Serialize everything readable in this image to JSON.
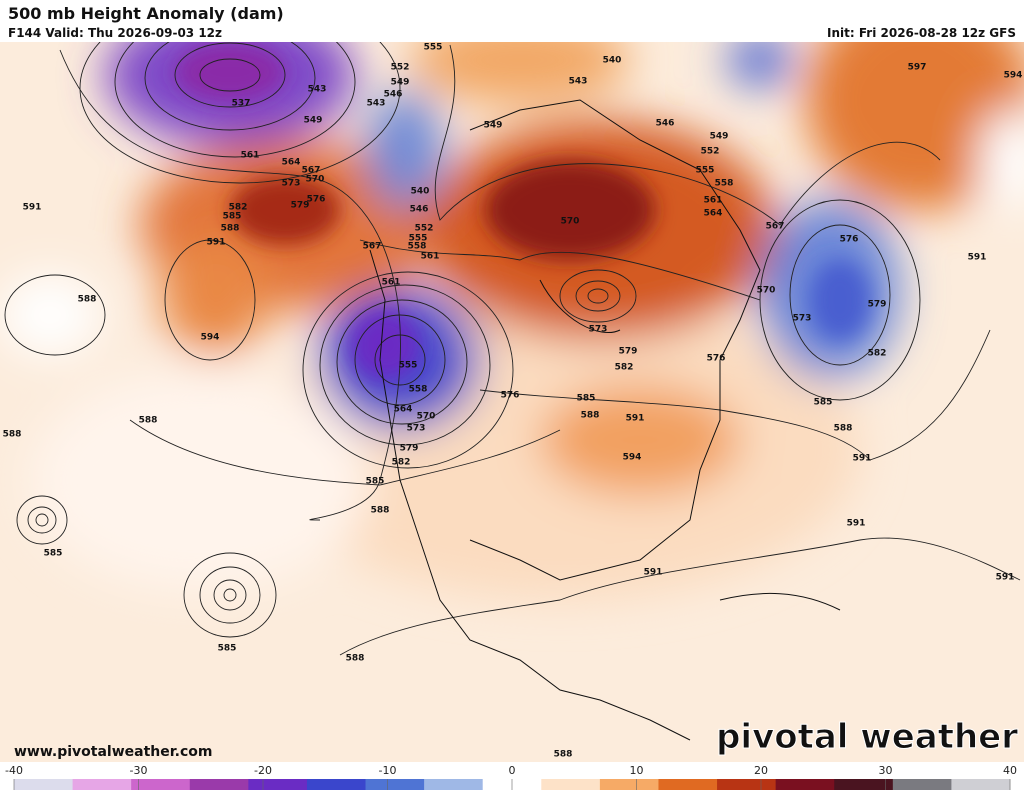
{
  "header": {
    "title": "500 mb Height Anomaly (dam)",
    "valid": "F144 Valid: Thu 2026-09-03 12z",
    "init": "Init: Fri 2026-08-28 12z GFS"
  },
  "footer": {
    "url": "www.pivotalweather.com",
    "logo": "pivotal weather"
  },
  "contour_labels": [
    "555",
    "552",
    "549",
    "546",
    "543",
    "543",
    "540",
    "546",
    "549",
    "552",
    "555",
    "558",
    "561",
    "564",
    "567",
    "570",
    "573",
    "576",
    "579",
    "582",
    "585",
    "588",
    "591",
    "591",
    "597",
    "594",
    "537",
    "543",
    "549",
    "561",
    "564",
    "567",
    "570",
    "573",
    "576",
    "579",
    "582",
    "585",
    "588",
    "591",
    "594",
    "588",
    "591",
    "588",
    "588",
    "585",
    "585",
    "588",
    "588",
    "585",
    "582",
    "579",
    "576",
    "573",
    "570",
    "564",
    "558",
    "555",
    "561",
    "567",
    "561",
    "558",
    "555",
    "552",
    "546",
    "540",
    "549",
    "570",
    "573",
    "579",
    "582",
    "585",
    "588",
    "591",
    "594",
    "576",
    "591",
    "591",
    "591",
    "588"
  ],
  "colorbar": {
    "ticks": [
      -40,
      -30,
      -20,
      -10,
      0,
      10,
      20,
      30,
      40
    ],
    "range": [
      -40,
      40
    ],
    "colors": [
      "#dcdcec",
      "#e6a6e6",
      "#cc66cc",
      "#9a3aaa",
      "#6a2cc4",
      "#3a46cc",
      "#4f74d4",
      "#9fb8e6",
      "#ffffff",
      "#fde2c8",
      "#f6aa66",
      "#e06a22",
      "#b83414",
      "#7a1020",
      "#4a1420",
      "#7a7a80",
      "#cfcfd4"
    ]
  }
}
